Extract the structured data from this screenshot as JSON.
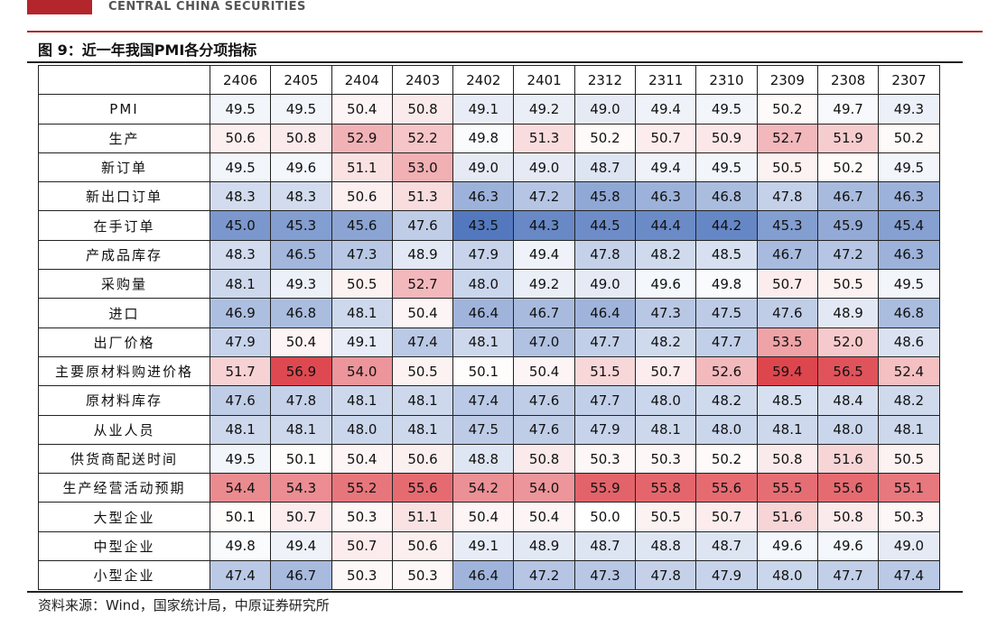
{
  "header": {
    "logo": "CENTRAL CHINA SECURITIES"
  },
  "title": "图 9：近一年我国PMI各分项指标",
  "table": {
    "columns": [
      "2406",
      "2405",
      "2404",
      "2403",
      "2402",
      "2401",
      "2312",
      "2311",
      "2310",
      "2309",
      "2308",
      "2307"
    ],
    "rows": [
      {
        "label": "PMI",
        "cells": [
          "49.5",
          "49.5",
          "50.4",
          "50.8",
          "49.1",
          "49.2",
          "49.0",
          "49.4",
          "49.5",
          "50.2",
          "49.7",
          "49.3"
        ]
      },
      {
        "label": "生产",
        "cells": [
          "50.6",
          "50.8",
          "52.9",
          "52.2",
          "49.8",
          "51.3",
          "50.2",
          "50.7",
          "50.9",
          "52.7",
          "51.9",
          "50.2"
        ]
      },
      {
        "label": "新订单",
        "cells": [
          "49.5",
          "49.6",
          "51.1",
          "53.0",
          "49.0",
          "49.0",
          "48.7",
          "49.4",
          "49.5",
          "50.5",
          "50.2",
          "49.5"
        ]
      },
      {
        "label": "新出口订单",
        "cells": [
          "48.3",
          "48.3",
          "50.6",
          "51.3",
          "46.3",
          "47.2",
          "45.8",
          "46.3",
          "46.8",
          "47.8",
          "46.7",
          "46.3"
        ]
      },
      {
        "label": "在手订单",
        "cells": [
          "45.0",
          "45.3",
          "45.6",
          "47.6",
          "43.5",
          "44.3",
          "44.5",
          "44.4",
          "44.2",
          "45.3",
          "45.9",
          "45.4"
        ]
      },
      {
        "label": "产成品库存",
        "cells": [
          "48.3",
          "46.5",
          "47.3",
          "48.9",
          "47.9",
          "49.4",
          "47.8",
          "48.2",
          "48.5",
          "46.7",
          "47.2",
          "46.3"
        ]
      },
      {
        "label": "采购量",
        "cells": [
          "48.1",
          "49.3",
          "50.5",
          "52.7",
          "48.0",
          "49.2",
          "49.0",
          "49.6",
          "49.8",
          "50.7",
          "50.5",
          "49.5"
        ]
      },
      {
        "label": "进口",
        "cells": [
          "46.9",
          "46.8",
          "48.1",
          "50.4",
          "46.4",
          "46.7",
          "46.4",
          "47.3",
          "47.5",
          "47.6",
          "48.9",
          "46.8"
        ]
      },
      {
        "label": "出厂价格",
        "cells": [
          "47.9",
          "50.4",
          "49.1",
          "47.4",
          "48.1",
          "47.0",
          "47.7",
          "48.2",
          "47.7",
          "53.5",
          "52.0",
          "48.6"
        ]
      },
      {
        "label": "主要原材料购进价格",
        "cells": [
          "51.7",
          "56.9",
          "54.0",
          "50.5",
          "50.1",
          "50.4",
          "51.5",
          "50.7",
          "52.6",
          "59.4",
          "56.5",
          "52.4"
        ]
      },
      {
        "label": "原材料库存",
        "cells": [
          "47.6",
          "47.8",
          "48.1",
          "48.1",
          "47.4",
          "47.6",
          "47.7",
          "48.0",
          "48.2",
          "48.5",
          "48.4",
          "48.2"
        ]
      },
      {
        "label": "从业人员",
        "cells": [
          "48.1",
          "48.1",
          "48.0",
          "48.1",
          "47.5",
          "47.6",
          "47.9",
          "48.1",
          "48.0",
          "48.1",
          "48.0",
          "48.1"
        ]
      },
      {
        "label": "供货商配送时间",
        "cells": [
          "49.5",
          "50.1",
          "50.4",
          "50.6",
          "48.8",
          "50.8",
          "50.3",
          "50.3",
          "50.2",
          "50.8",
          "51.6",
          "50.5"
        ]
      },
      {
        "label": "生产经营活动预期",
        "cells": [
          "54.4",
          "54.3",
          "55.2",
          "55.6",
          "54.2",
          "54.0",
          "55.9",
          "55.8",
          "55.6",
          "55.5",
          "55.6",
          "55.1"
        ]
      },
      {
        "label": "大型企业",
        "cells": [
          "50.1",
          "50.7",
          "50.3",
          "51.1",
          "50.4",
          "50.4",
          "50.0",
          "50.5",
          "50.7",
          "51.6",
          "50.8",
          "50.3"
        ]
      },
      {
        "label": "中型企业",
        "cells": [
          "49.8",
          "49.4",
          "50.7",
          "50.6",
          "49.1",
          "48.9",
          "48.7",
          "48.8",
          "48.7",
          "49.6",
          "49.6",
          "49.0"
        ]
      },
      {
        "label": "小型企业",
        "cells": [
          "47.4",
          "46.7",
          "50.3",
          "50.3",
          "46.4",
          "47.2",
          "47.3",
          "47.8",
          "47.9",
          "48.0",
          "47.7",
          "47.4"
        ]
      }
    ]
  },
  "source": "资料来源：Wind，国家统计局，中原证券研究所"
}
